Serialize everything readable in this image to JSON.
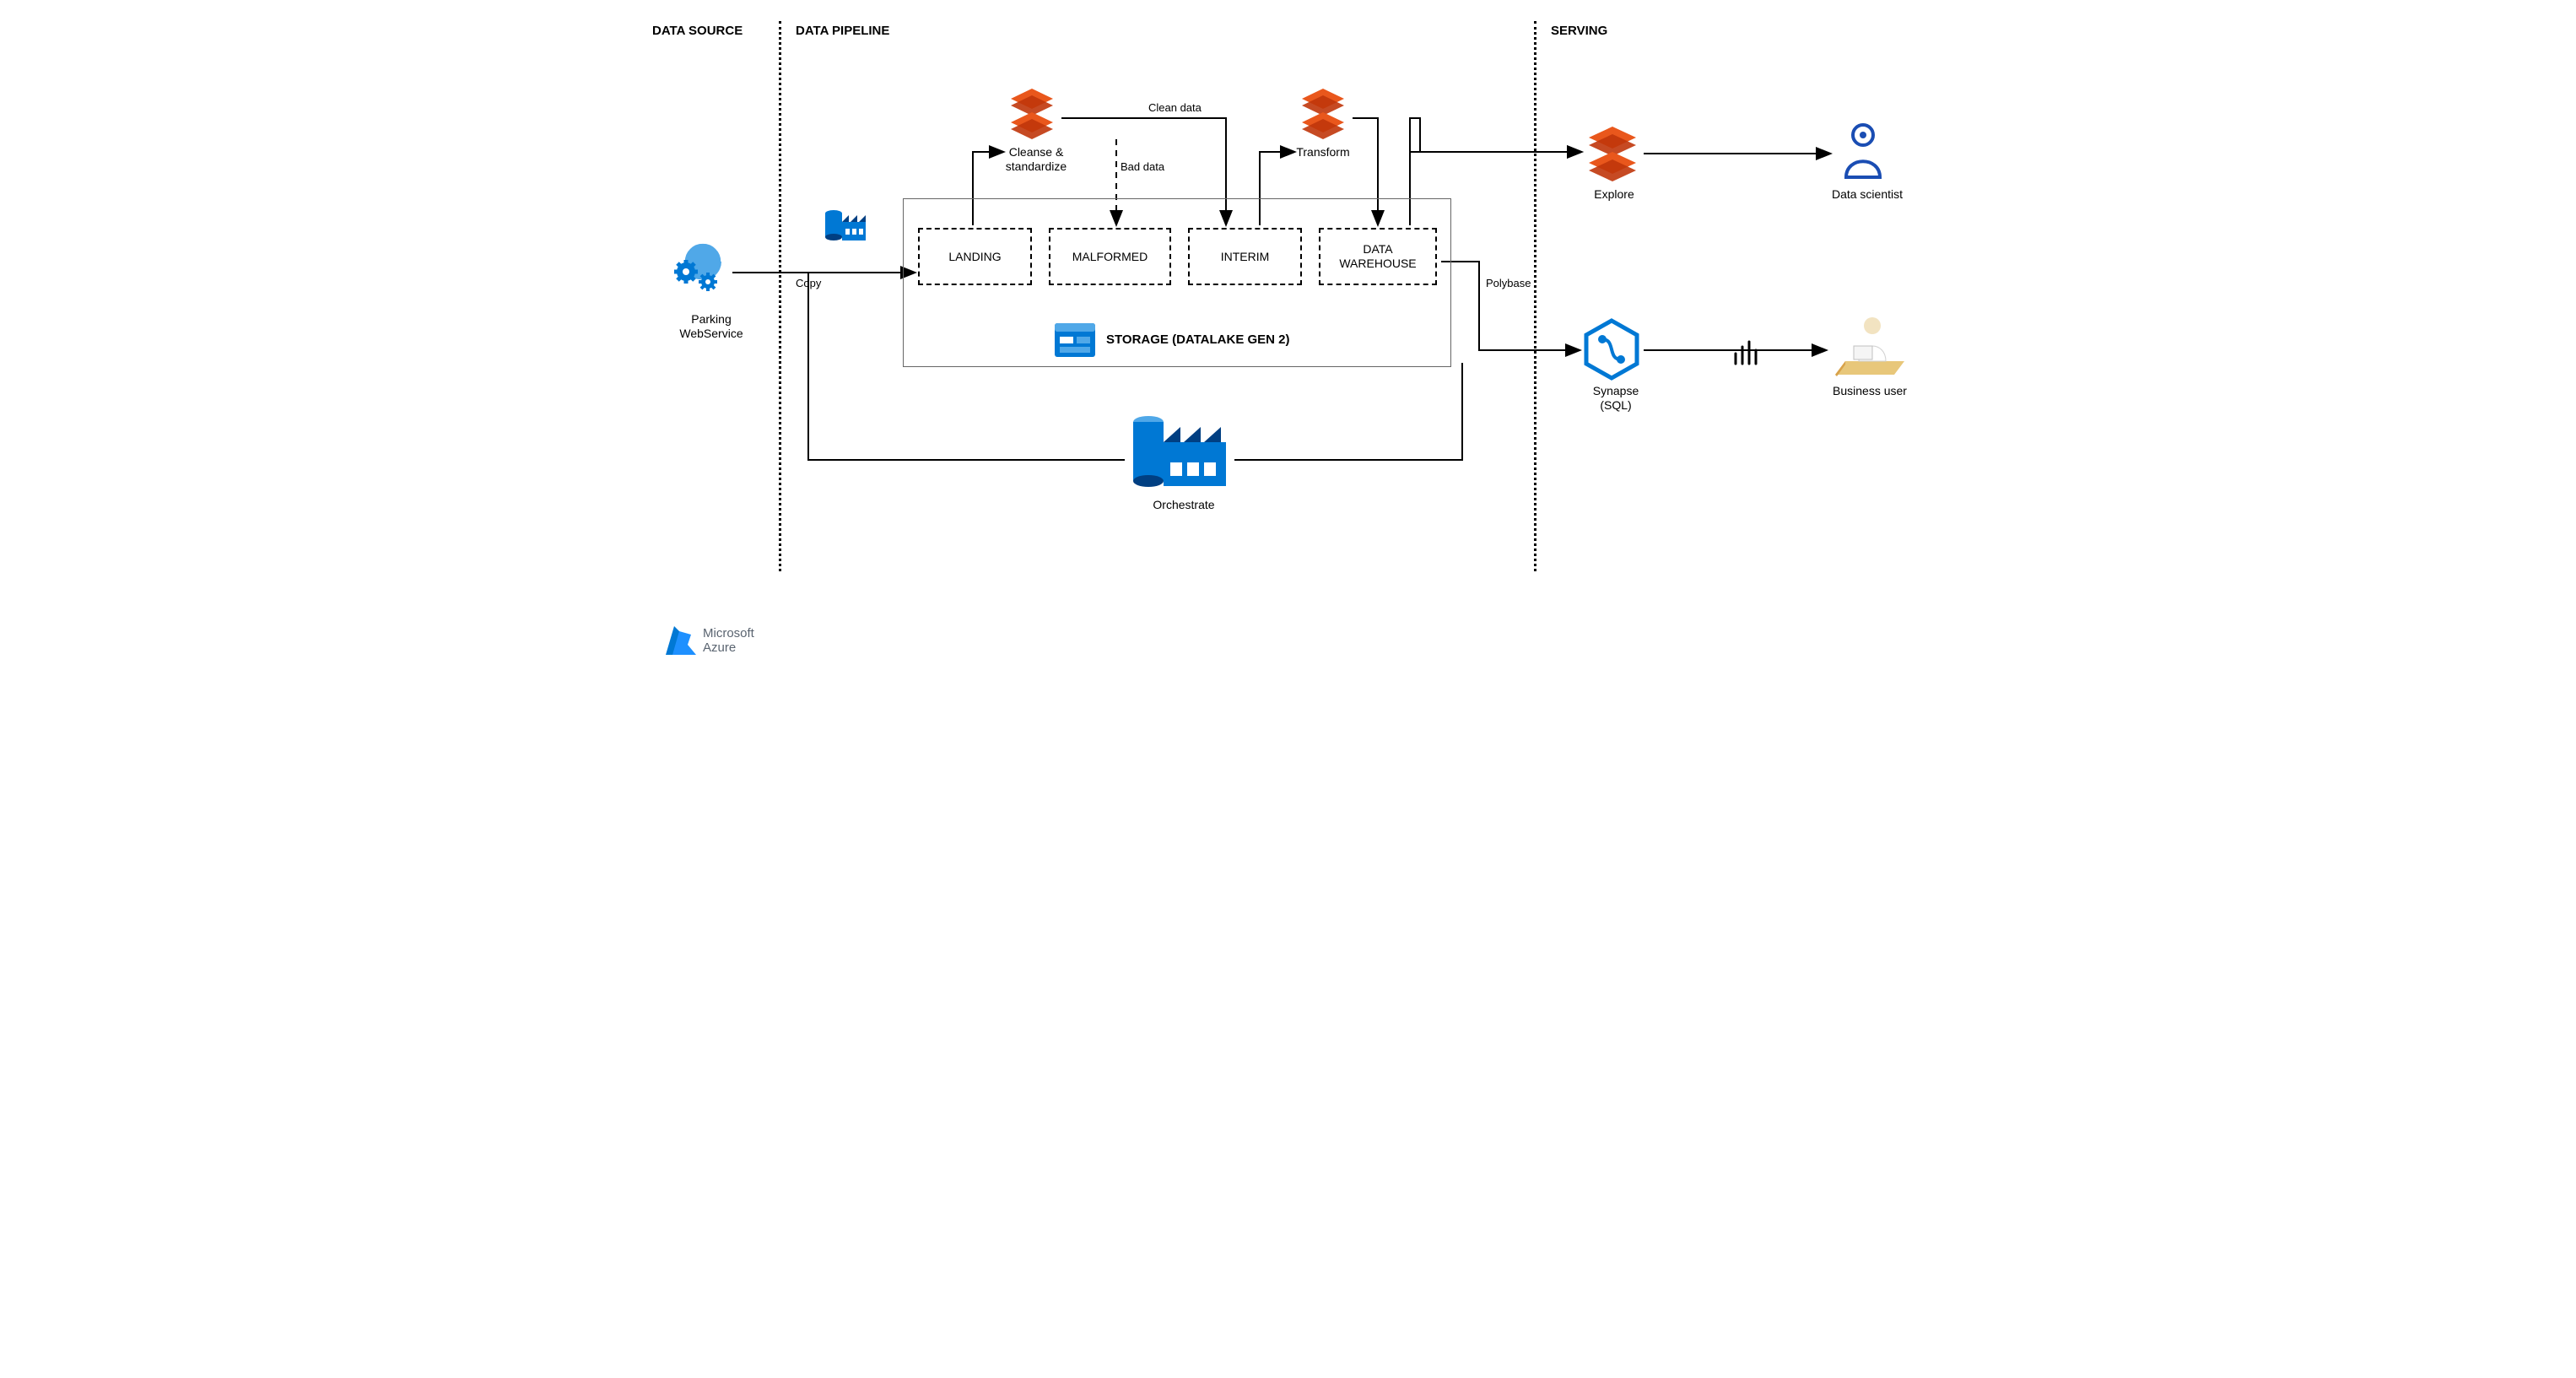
{
  "diagram": {
    "type": "flowchart",
    "background_color": "#ffffff",
    "text_color": "#000000",
    "arrow_color": "#000000",
    "arrow_stroke_width": 2,
    "dashed_border_color": "#000000",
    "solid_border_color": "#666666",
    "dotted_divider_color": "#000000",
    "sections": {
      "data_source": {
        "label": "DATA SOURCE",
        "font_weight": 700
      },
      "data_pipeline": {
        "label": "DATA PIPELINE",
        "font_weight": 700
      },
      "serving": {
        "label": "SERVING",
        "font_weight": 700
      }
    },
    "nodes": {
      "parking": {
        "label": "Parking\nWebService",
        "icon": "gears-web",
        "colors": [
          "#0078d4",
          "#50a8e8"
        ]
      },
      "data_factory_small": {
        "icon": "azure-data-factory",
        "colors": [
          "#0078d4",
          "#003f82"
        ]
      },
      "cleanse": {
        "label": "Cleanse &\nstandardize",
        "icon": "databricks",
        "colors": [
          "#e9571c",
          "#c0360b"
        ]
      },
      "transform": {
        "label": "Transform",
        "icon": "databricks",
        "colors": [
          "#e9571c",
          "#c0360b"
        ]
      },
      "explore": {
        "label": "Explore",
        "icon": "databricks",
        "colors": [
          "#e9571c",
          "#c0360b"
        ]
      },
      "data_scientist": {
        "label": "Data scientist",
        "icon": "person-outline",
        "colors": [
          "#1a4db3"
        ]
      },
      "synapse": {
        "label": "Synapse\n(SQL)",
        "icon": "synapse-hex",
        "colors": [
          "#0078d4",
          "#ffffff"
        ]
      },
      "powerbi": {
        "icon": "power-bi",
        "colors": [
          "#000000"
        ]
      },
      "business_user": {
        "label": "Business user",
        "icon": "business-user",
        "colors": [
          "#e8c77a",
          "#d8a24a",
          "#ffffff"
        ]
      },
      "orchestrate": {
        "label": "Orchestrate",
        "icon": "azure-data-factory-large",
        "colors": [
          "#0078d4",
          "#50a8e8",
          "#003f82"
        ]
      }
    },
    "storage": {
      "title": "STORAGE (DATALAKE GEN 2)",
      "icon_colors": [
        "#0078d4",
        "#50a8e8",
        "#ffffff"
      ],
      "zones": {
        "landing": {
          "label": "LANDING"
        },
        "malformed": {
          "label": "MALFORMED"
        },
        "interim": {
          "label": "INTERIM"
        },
        "data_warehouse": {
          "label": "DATA\nWAREHOUSE"
        }
      }
    },
    "edges": {
      "copy": {
        "label": "Copy"
      },
      "clean_data": {
        "label": "Clean data"
      },
      "bad_data": {
        "label": "Bad data",
        "style": "dashed"
      },
      "polybase": {
        "label": "Polybase"
      }
    },
    "branding": {
      "line1": "Microsoft",
      "line2": "Azure",
      "icon_color": "#0078d4"
    }
  }
}
